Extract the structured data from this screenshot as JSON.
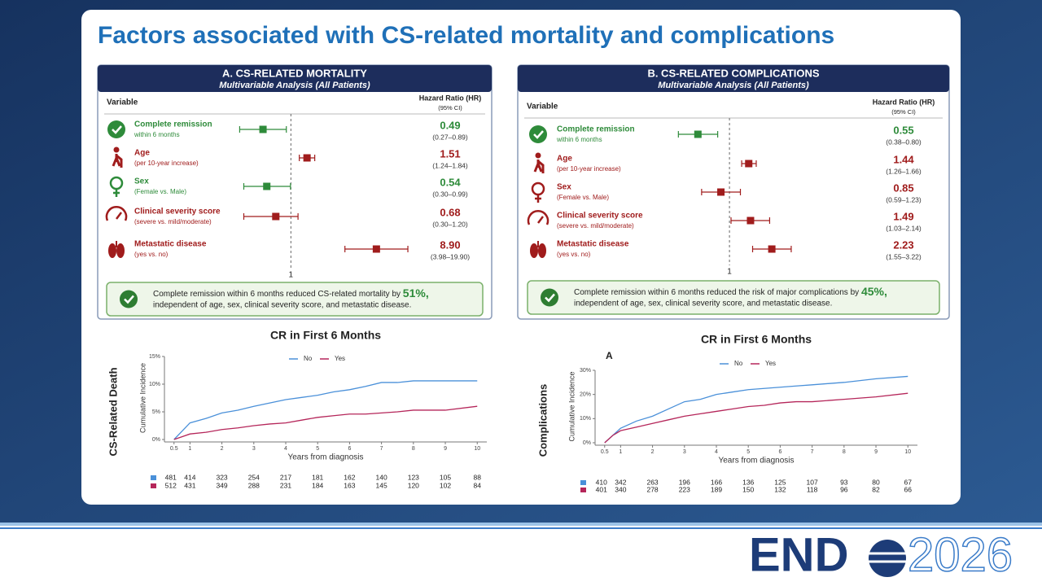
{
  "slide": {
    "title": "Factors associated with CS-related mortality and complications",
    "logo": {
      "brand": "END",
      "year": "2026"
    }
  },
  "chart_data": [
    {
      "type": "forest",
      "title": "A. CS-RELATED MORTALITY",
      "subtitle": "Multivariable Analysis (All Patients)",
      "variable_header": "Variable",
      "hr_header": "Hazard Ratio (HR)",
      "ci_header": "(95% CI)",
      "categories": [
        "Complete remission",
        "Age",
        "Sex",
        "Clinical severity score",
        "Metastatic disease"
      ],
      "sublabels": [
        "within 6 months",
        "(per 10-year increase)",
        "(Female vs. Male)",
        "(severe vs. mild/moderate)",
        "(yes vs. no)"
      ],
      "values": [
        0.49,
        1.51,
        0.54,
        0.68,
        8.9
      ],
      "value_labels": [
        "0.49",
        "1.51",
        "0.54",
        "0.68",
        "8.90"
      ],
      "ci_low": [
        0.27,
        1.24,
        0.3,
        0.3,
        3.98
      ],
      "ci_high": [
        0.89,
        1.84,
        0.99,
        1.2,
        19.9
      ],
      "ci_labels": [
        "(0.27–0.89)",
        "(1.24–1.84)",
        "(0.30–0.99)",
        "(0.30–1.20)",
        "(3.98–19.90)"
      ],
      "colors": [
        "#2e8b3a",
        "#a01c1c",
        "#2e8b3a",
        "#a01c1c",
        "#a01c1c"
      ],
      "log_x": true,
      "xlim": [
        0.2,
        25
      ],
      "xticks": [
        1
      ],
      "summary": {
        "text": "Complete remission within 6 months reduced CS-related mortality by ",
        "highlight": "51%,",
        "line2": "independent of age, sex, clinical severity score, and metastatic disease."
      }
    },
    {
      "type": "forest",
      "title": "B. CS-RELATED COMPLICATIONS",
      "subtitle": "Multivariable Analysis (All Patients)",
      "variable_header": "Variable",
      "hr_header": "Hazard Ratio (HR)",
      "ci_header": "(95% CI)",
      "categories": [
        "Complete remission",
        "Age",
        "Sex",
        "Clinical severity score",
        "Metastatic disease"
      ],
      "sublabels": [
        "within 6 months",
        "(per 10-year increase)",
        "(Female vs. Male)",
        "(severe vs. mild/moderate)",
        "(yes vs. no)"
      ],
      "values": [
        0.55,
        1.44,
        0.85,
        1.49,
        2.23
      ],
      "ci_low": [
        0.38,
        1.26,
        0.59,
        1.03,
        1.55
      ],
      "ci_high": [
        0.8,
        1.66,
        1.23,
        2.14,
        3.22
      ],
      "ci_labels": [
        "(0.38–0.80)",
        "(1.26–1.66)",
        "(0.59–1.23)",
        "(1.03–2.14)",
        "(1.55–3.22)"
      ],
      "colors": [
        "#2e8b3a",
        "#a01c1c",
        "#a01c1c",
        "#a01c1c",
        "#a01c1c"
      ],
      "log_x": true,
      "xlim": [
        0.3,
        4
      ],
      "xticks": [
        1
      ],
      "summary": {
        "text": "Complete remission within 6 months reduced the risk of major complications by ",
        "highlight": "45%,",
        "line2": "independent of age, sex, clinical severity score, and metastatic disease."
      }
    },
    {
      "type": "line",
      "title": "CR in First 6 Months",
      "side_label": "CS-Related Death",
      "y_label": "Cumulative Incidence",
      "x_label": "Years from diagnosis",
      "x": [
        0.5,
        0.75,
        1,
        1.5,
        2,
        2.5,
        3,
        3.5,
        4,
        4.5,
        5,
        5.5,
        6,
        6.5,
        7,
        7.5,
        8,
        9,
        10
      ],
      "series": [
        {
          "name": "No",
          "color": "#4a90d9",
          "values": [
            0,
            1.5,
            3,
            3.8,
            4.8,
            5.3,
            6,
            6.6,
            7.2,
            7.6,
            8,
            8.6,
            9,
            9.6,
            10.3,
            10.3,
            10.6,
            10.6,
            10.6
          ],
          "at_risk": [
            481,
            414,
            323,
            254,
            217,
            181,
            162,
            140,
            123,
            105,
            88
          ]
        },
        {
          "name": "Yes",
          "color": "#b5265a",
          "values": [
            0,
            0.5,
            1,
            1.3,
            1.8,
            2.1,
            2.5,
            2.8,
            3,
            3.5,
            4,
            4.3,
            4.6,
            4.6,
            4.8,
            5,
            5.3,
            5.3,
            6
          ],
          "at_risk": [
            512,
            431,
            349,
            288,
            231,
            184,
            163,
            145,
            120,
            102,
            84
          ]
        }
      ],
      "xlim": [
        0.2,
        10.3
      ],
      "xticks": [
        0.5,
        1,
        2,
        3,
        4,
        5,
        6,
        7,
        8,
        9,
        10
      ],
      "ylim": [
        0,
        15
      ],
      "yticks": [
        {
          "value": 0,
          "label": "0%"
        },
        {
          "value": 5,
          "label": "5%"
        },
        {
          "value": 10,
          "label": "10%"
        },
        {
          "value": 15,
          "label": "15%"
        }
      ]
    },
    {
      "type": "line",
      "title": "CR in First 6 Months",
      "panel_label": "A",
      "side_label": "Complications",
      "y_label": "Cumulative Incidence",
      "x_label": "Years from diagnosis",
      "x": [
        0.5,
        0.75,
        1,
        1.5,
        2,
        2.5,
        3,
        3.5,
        4,
        4.5,
        5,
        5.5,
        6,
        6.5,
        7,
        7.5,
        8,
        9,
        10
      ],
      "series": [
        {
          "name": "No",
          "color": "#4a90d9",
          "values": [
            0,
            3,
            6,
            9,
            11,
            14,
            17,
            18,
            20,
            21,
            22,
            22.5,
            23,
            23.5,
            24,
            24.5,
            25,
            26.5,
            27.5
          ],
          "at_risk": [
            410,
            342,
            263,
            196,
            166,
            136,
            125,
            107,
            93,
            80,
            67
          ]
        },
        {
          "name": "Yes",
          "color": "#b5265a",
          "values": [
            0,
            3,
            5,
            6.5,
            8,
            9.5,
            11,
            12,
            13,
            14,
            15,
            15.5,
            16.5,
            17,
            17,
            17.5,
            18,
            19,
            20.5
          ],
          "at_risk": [
            401,
            340,
            278,
            223,
            189,
            150,
            132,
            118,
            96,
            82,
            66
          ]
        }
      ],
      "xlim": [
        0.2,
        10.3
      ],
      "xticks": [
        0.5,
        1,
        2,
        3,
        4,
        5,
        6,
        7,
        8,
        9,
        10
      ],
      "ylim": [
        0,
        30
      ],
      "yticks": [
        {
          "value": 0,
          "label": "0%"
        },
        {
          "value": 10,
          "label": "10%"
        },
        {
          "value": 20,
          "label": "20%"
        },
        {
          "value": 30,
          "label": "30%"
        }
      ]
    }
  ]
}
